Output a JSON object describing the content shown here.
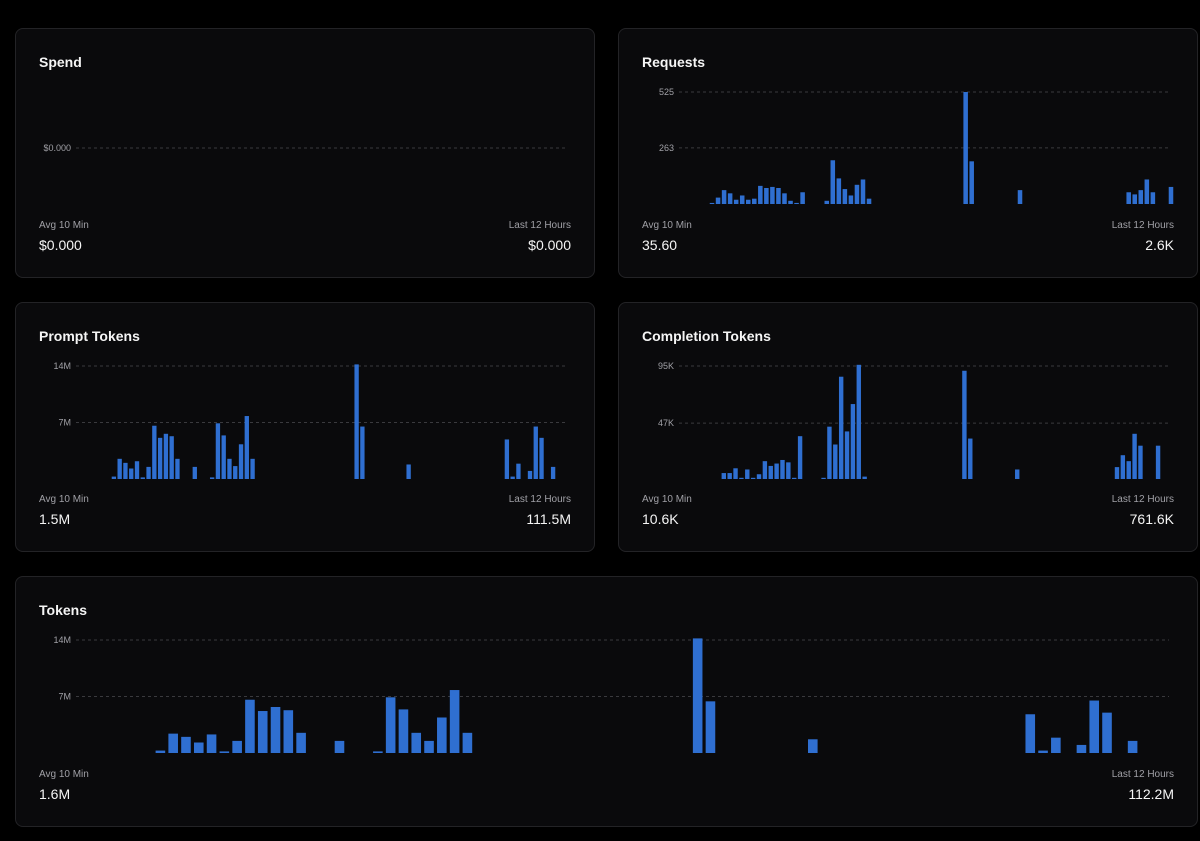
{
  "colors": {
    "bar": "#2f6fd1",
    "background": "#000000",
    "card": "#0a0a0c"
  },
  "cards": [
    {
      "id": "spend",
      "title": "Spend",
      "avg_label": "Avg 10 Min",
      "avg_value": "$0.000",
      "total_label": "Last 12 Hours",
      "total_value": "$0.000"
    },
    {
      "id": "requests",
      "title": "Requests",
      "avg_label": "Avg 10 Min",
      "avg_value": "35.60",
      "total_label": "Last 12 Hours",
      "total_value": "2.6K"
    },
    {
      "id": "prompt-tokens",
      "title": "Prompt Tokens",
      "avg_label": "Avg 10 Min",
      "avg_value": "1.5M",
      "total_label": "Last 12 Hours",
      "total_value": "111.5M"
    },
    {
      "id": "completion-tokens",
      "title": "Completion Tokens",
      "avg_label": "Avg 10 Min",
      "avg_value": "10.6K",
      "total_label": "Last 12 Hours",
      "total_value": "761.6K"
    },
    {
      "id": "tokens",
      "title": "Tokens",
      "avg_label": "Avg 10 Min",
      "avg_value": "1.6M",
      "total_label": "Last 12 Hours",
      "total_value": "112.2M"
    }
  ],
  "chart_data": [
    {
      "id": "spend",
      "type": "bar",
      "title": "Spend",
      "yticks": [
        {
          "label": "$0.000",
          "value": 0.5
        }
      ],
      "ylim": [
        0,
        1
      ],
      "grid": true,
      "values": []
    },
    {
      "id": "requests",
      "type": "bar",
      "title": "Requests",
      "yticks": [
        {
          "label": "525",
          "value": 525
        },
        {
          "label": "263",
          "value": 263
        }
      ],
      "ylim": [
        0,
        525
      ],
      "grid": true,
      "values": [
        5,
        30,
        65,
        50,
        20,
        40,
        20,
        25,
        85,
        75,
        80,
        75,
        50,
        15,
        5,
        55,
        0,
        0,
        0,
        15,
        205,
        120,
        70,
        40,
        90,
        115,
        25,
        0,
        0,
        0,
        0,
        0,
        0,
        0,
        0,
        0,
        0,
        0,
        0,
        0,
        0,
        0,
        525,
        200,
        0,
        0,
        0,
        0,
        0,
        0,
        0,
        65,
        0,
        0,
        0,
        0,
        0,
        0,
        0,
        0,
        0,
        0,
        0,
        0,
        0,
        0,
        0,
        0,
        0,
        55,
        45,
        65,
        115,
        55,
        0,
        0,
        80
      ]
    },
    {
      "id": "prompt-tokens",
      "type": "bar",
      "title": "Prompt Tokens",
      "yticks": [
        {
          "label": "14M",
          "value": 14
        },
        {
          "label": "7M",
          "value": 7
        }
      ],
      "ylim": [
        0,
        14
      ],
      "grid": true,
      "values": [
        0.3,
        2.5,
        2.0,
        1.3,
        2.2,
        0.2,
        1.5,
        6.6,
        5.1,
        5.6,
        5.3,
        2.5,
        0,
        0,
        1.5,
        0,
        0,
        0.2,
        6.9,
        5.4,
        2.5,
        1.6,
        4.3,
        7.8,
        2.5,
        0,
        0,
        0,
        0,
        0,
        0,
        0,
        0,
        0,
        0,
        0,
        0,
        0,
        0,
        0,
        0,
        0,
        14.2,
        6.5,
        0,
        0,
        0,
        0,
        0,
        0,
        0,
        1.8,
        0,
        0,
        0,
        0,
        0,
        0,
        0,
        0,
        0,
        0,
        0,
        0,
        0,
        0,
        0,
        0,
        4.9,
        0.3,
        1.9,
        0,
        1.0,
        6.5,
        5.1,
        0,
        1.5
      ]
    },
    {
      "id": "completion-tokens",
      "type": "bar",
      "title": "Completion Tokens",
      "yticks": [
        {
          "label": "95K",
          "value": 95
        },
        {
          "label": "47K",
          "value": 47
        }
      ],
      "ylim": [
        0,
        95
      ],
      "grid": true,
      "values": [
        0,
        5,
        5,
        9,
        1,
        8,
        1,
        4,
        15,
        11,
        13,
        16,
        14,
        1,
        36,
        0,
        0,
        0,
        1,
        44,
        29,
        86,
        40,
        63,
        96,
        2,
        0,
        0,
        0,
        0,
        0,
        0,
        0,
        0,
        0,
        0,
        0,
        0,
        0,
        0,
        0,
        0,
        91,
        34,
        0,
        0,
        0,
        0,
        0,
        0,
        0,
        8,
        0,
        0,
        0,
        0,
        0,
        0,
        0,
        0,
        0,
        0,
        0,
        0,
        0,
        0,
        0,
        0,
        10,
        20,
        15,
        38,
        28,
        0,
        0,
        28
      ]
    },
    {
      "id": "tokens",
      "type": "bar",
      "title": "Tokens",
      "yticks": [
        {
          "label": "14M",
          "value": 14
        },
        {
          "label": "7M",
          "value": 7
        }
      ],
      "ylim": [
        0,
        14
      ],
      "grid": true,
      "values": [
        0.3,
        2.4,
        2.0,
        1.3,
        2.3,
        0.2,
        1.5,
        6.6,
        5.2,
        5.7,
        5.3,
        2.5,
        0,
        0,
        1.5,
        0,
        0,
        0.2,
        6.9,
        5.4,
        2.5,
        1.5,
        4.4,
        7.8,
        2.5,
        0,
        0,
        0,
        0,
        0,
        0,
        0,
        0,
        0,
        0,
        0,
        0,
        0,
        0,
        0,
        0,
        0,
        14.2,
        6.4,
        0,
        0,
        0,
        0,
        0,
        0,
        0,
        1.7,
        0,
        0,
        0,
        0,
        0,
        0,
        0,
        0,
        0,
        0,
        0,
        0,
        0,
        0,
        0,
        0,
        4.8,
        0.3,
        1.9,
        0,
        1.0,
        6.5,
        5.0,
        0,
        1.5
      ]
    }
  ]
}
